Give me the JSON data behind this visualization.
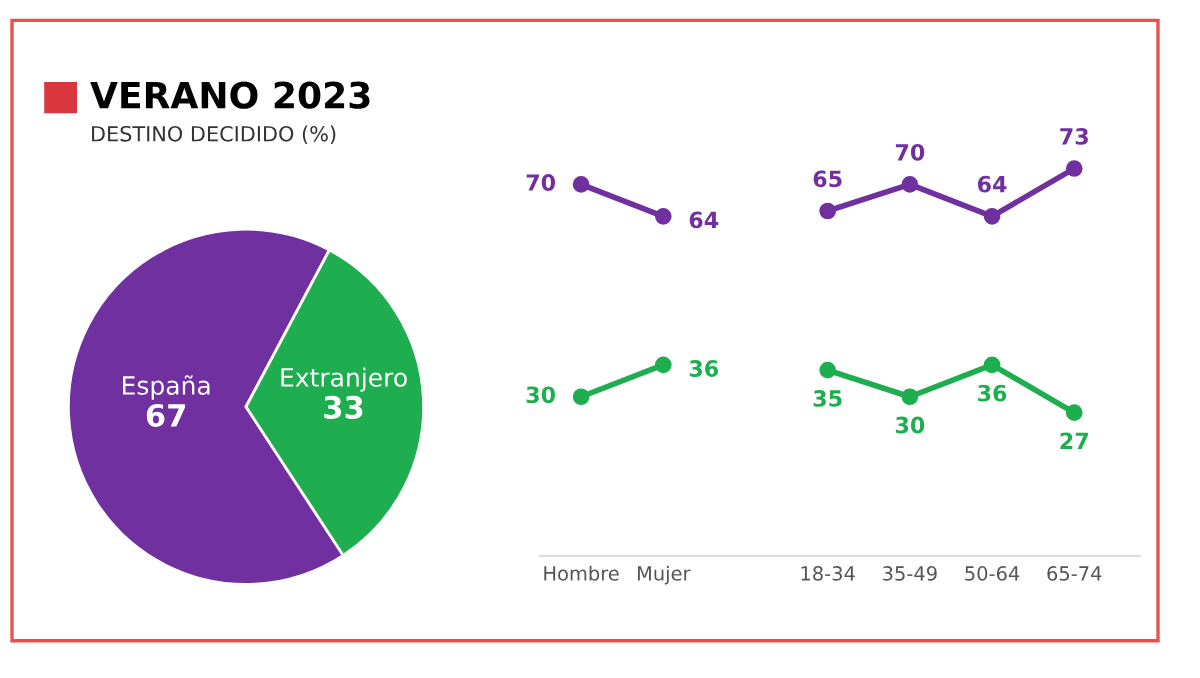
{
  "chart_data": [
    {
      "type": "pie",
      "title": "VERANO 2023",
      "subtitle": "DESTINO DECIDIDO (%)",
      "categories": [
        "España",
        "Extranjero"
      ],
      "values": [
        67,
        33
      ],
      "colors": [
        "#7030a0",
        "#1fae4f"
      ],
      "data_labels": true,
      "legend": false
    },
    {
      "type": "line",
      "categories": [
        "Hombre",
        "Mujer",
        null,
        "18-34",
        "35-49",
        "50-64",
        "65-74"
      ],
      "marker": "circle",
      "line_style": "solid",
      "data_labels": true,
      "grid": false,
      "tick_labels": "x",
      "series": [
        {
          "color": "#7030a0",
          "values": [
            70,
            64,
            null,
            65,
            70,
            64,
            73
          ]
        },
        {
          "color": "#1fae4f",
          "values": [
            30,
            36,
            null,
            35,
            30,
            36,
            27
          ]
        }
      ]
    }
  ]
}
